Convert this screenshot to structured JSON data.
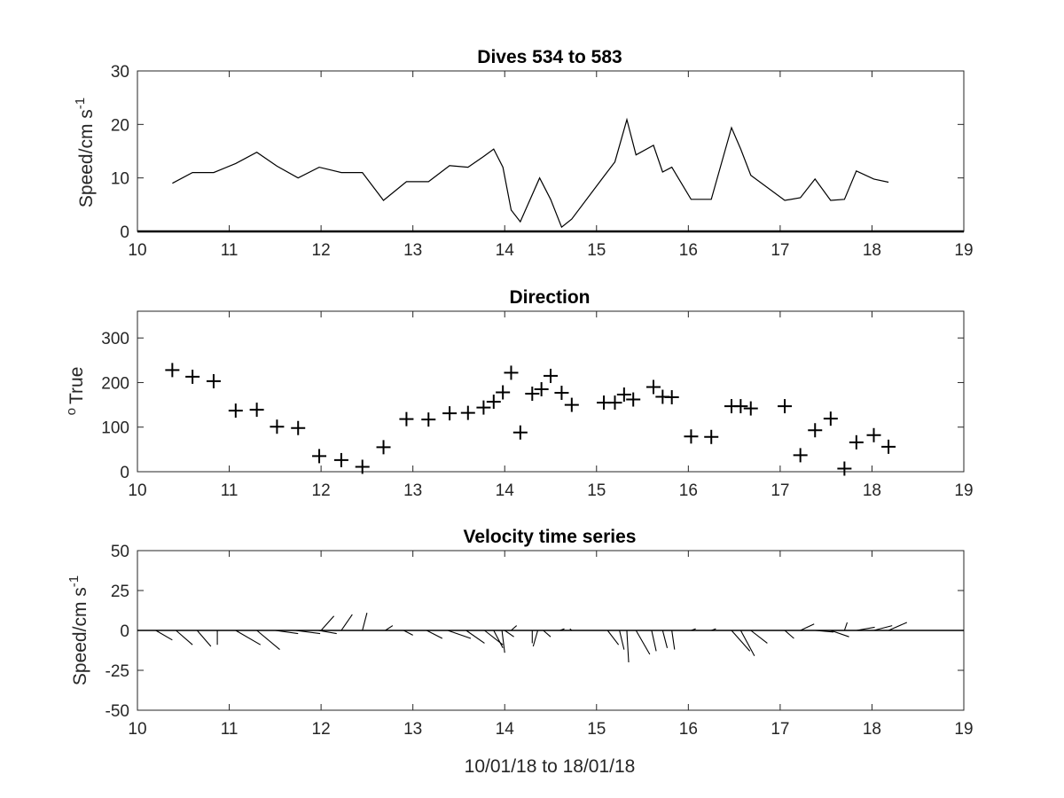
{
  "chart_data": [
    {
      "type": "line",
      "title": "Dives 534 to 583",
      "ylabel": "Speed/cm s",
      "ylabel_sup": "-1",
      "xlim": [
        10,
        19
      ],
      "ylim": [
        0,
        30
      ],
      "xticks": [
        "10",
        "11",
        "12",
        "13",
        "14",
        "15",
        "16",
        "17",
        "18",
        "19"
      ],
      "yticks": [
        "0",
        "10",
        "20",
        "30"
      ],
      "series": [
        {
          "x": [
            10.38,
            10.6,
            10.83,
            11.07,
            11.3,
            11.52,
            11.75,
            11.98,
            12.22,
            12.45,
            12.68,
            12.93,
            13.17,
            13.4,
            13.6,
            13.77,
            13.88,
            13.98,
            14.07,
            14.17,
            14.38,
            14.5,
            14.62,
            14.73,
            15.08,
            15.2,
            15.33,
            15.43,
            15.62,
            15.72,
            15.82,
            16.03,
            16.25,
            16.47,
            16.57,
            16.68,
            17.05,
            17.22,
            17.38,
            17.55,
            17.7,
            17.83,
            18.02,
            18.18
          ],
          "y": [
            9,
            11,
            11,
            12.7,
            14.8,
            12.2,
            10,
            12,
            11,
            11,
            5.8,
            9.3,
            9.3,
            12.3,
            12,
            14,
            15.4,
            12,
            4,
            1.8,
            10,
            6,
            0.8,
            2.3,
            10.3,
            13,
            20.9,
            14.3,
            16.1,
            11.1,
            12,
            6,
            6,
            19.4,
            15.4,
            10.5,
            5.8,
            6.3,
            9.8,
            5.8,
            6,
            11.3,
            9.8,
            9.2
          ]
        }
      ]
    },
    {
      "type": "scatter",
      "title": "Direction",
      "ylabel": "True",
      "ylabel_sup": "o",
      "xlim": [
        10,
        19
      ],
      "ylim": [
        0,
        360
      ],
      "xticks": [
        "10",
        "11",
        "12",
        "13",
        "14",
        "15",
        "16",
        "17",
        "18",
        "19"
      ],
      "yticks": [
        "0",
        "100",
        "200",
        "300"
      ],
      "series": [
        {
          "x": [
            10.38,
            10.6,
            10.83,
            11.07,
            11.3,
            11.52,
            11.75,
            11.98,
            12.22,
            12.45,
            12.68,
            12.93,
            13.17,
            13.4,
            13.6,
            13.77,
            13.88,
            13.98,
            14.07,
            14.17,
            14.3,
            14.4,
            14.5,
            14.62,
            14.73,
            15.08,
            15.2,
            15.3,
            15.4,
            15.62,
            15.72,
            15.82,
            16.03,
            16.25,
            16.47,
            16.57,
            16.68,
            17.05,
            17.22,
            17.38,
            17.55,
            17.7,
            17.83,
            18.02,
            18.18
          ],
          "y": [
            228,
            213,
            203,
            137,
            139,
            101,
            98,
            35,
            26,
            11,
            55,
            118,
            117,
            131,
            132,
            144,
            157,
            178,
            222,
            88,
            175,
            185,
            215,
            177,
            150,
            155,
            155,
            173,
            162,
            190,
            168,
            167,
            79,
            78,
            147,
            147,
            142,
            147,
            37,
            93,
            119,
            7,
            66,
            82,
            56
          ]
        }
      ]
    },
    {
      "type": "line",
      "title": "Velocity time series",
      "ylabel": "Speed/cm s",
      "ylabel_sup": "-1",
      "xlabel": "10/01/18 to 18/01/18",
      "xlim": [
        10,
        19
      ],
      "ylim": [
        -50,
        50
      ],
      "xticks": [
        "10",
        "11",
        "12",
        "13",
        "14",
        "15",
        "16",
        "17",
        "18",
        "19"
      ],
      "yticks": [
        "-50",
        "-25",
        "0",
        "25",
        "50"
      ],
      "sticks": [
        {
          "x": 10.2,
          "u": 0.18,
          "v": -6
        },
        {
          "x": 10.42,
          "u": 0.18,
          "v": -9
        },
        {
          "x": 10.65,
          "u": 0.15,
          "v": -10
        },
        {
          "x": 10.87,
          "u": 0.0,
          "v": -9
        },
        {
          "x": 11.07,
          "u": 0.27,
          "v": -9
        },
        {
          "x": 11.3,
          "u": 0.25,
          "v": -12
        },
        {
          "x": 11.5,
          "u": 0.25,
          "v": -2
        },
        {
          "x": 11.72,
          "u": 0.27,
          "v": -2
        },
        {
          "x": 11.97,
          "u": 0.2,
          "v": -2
        },
        {
          "x": 12.0,
          "u": 0.14,
          "v": 9
        },
        {
          "x": 12.22,
          "u": 0.12,
          "v": 10
        },
        {
          "x": 12.45,
          "u": 0.05,
          "v": 11
        },
        {
          "x": 12.7,
          "u": 0.08,
          "v": 3
        },
        {
          "x": 12.9,
          "u": 0.1,
          "v": -3
        },
        {
          "x": 13.15,
          "u": 0.17,
          "v": -5
        },
        {
          "x": 13.38,
          "u": 0.25,
          "v": -5
        },
        {
          "x": 13.58,
          "u": 0.2,
          "v": -8
        },
        {
          "x": 13.78,
          "u": 0.2,
          "v": -9
        },
        {
          "x": 13.88,
          "u": 0.1,
          "v": -11
        },
        {
          "x": 13.97,
          "u": 0.03,
          "v": -14
        },
        {
          "x": 14.0,
          "u": 0.1,
          "v": -4
        },
        {
          "x": 14.07,
          "u": 0.06,
          "v": 3
        },
        {
          "x": 14.3,
          "u": 0.0,
          "v": -8
        },
        {
          "x": 14.36,
          "u": -0.05,
          "v": -10
        },
        {
          "x": 14.42,
          "u": 0.08,
          "v": -4
        },
        {
          "x": 14.6,
          "u": 0.05,
          "v": 1
        },
        {
          "x": 14.73,
          "u": -0.02,
          "v": 1
        },
        {
          "x": 15.12,
          "u": 0.12,
          "v": -9
        },
        {
          "x": 15.25,
          "u": 0.05,
          "v": -12
        },
        {
          "x": 15.33,
          "u": 0.02,
          "v": -20
        },
        {
          "x": 15.43,
          "u": 0.15,
          "v": -15
        },
        {
          "x": 15.6,
          "u": 0.05,
          "v": -13
        },
        {
          "x": 15.72,
          "u": 0.05,
          "v": -11
        },
        {
          "x": 15.82,
          "u": 0.03,
          "v": -12
        },
        {
          "x": 16.03,
          "u": 0.05,
          "v": 1
        },
        {
          "x": 16.25,
          "u": 0.05,
          "v": 1
        },
        {
          "x": 16.47,
          "u": 0.2,
          "v": -13
        },
        {
          "x": 16.57,
          "u": 0.15,
          "v": -16
        },
        {
          "x": 16.68,
          "u": 0.18,
          "v": -8
        },
        {
          "x": 17.05,
          "u": 0.1,
          "v": -5
        },
        {
          "x": 17.22,
          "u": 0.15,
          "v": 4
        },
        {
          "x": 17.38,
          "u": 0.2,
          "v": -1
        },
        {
          "x": 17.55,
          "u": 0.2,
          "v": -4
        },
        {
          "x": 17.7,
          "u": 0.03,
          "v": 5
        },
        {
          "x": 17.83,
          "u": 0.2,
          "v": 2
        },
        {
          "x": 18.02,
          "u": 0.2,
          "v": 3
        },
        {
          "x": 18.18,
          "u": 0.2,
          "v": 5
        }
      ]
    }
  ]
}
